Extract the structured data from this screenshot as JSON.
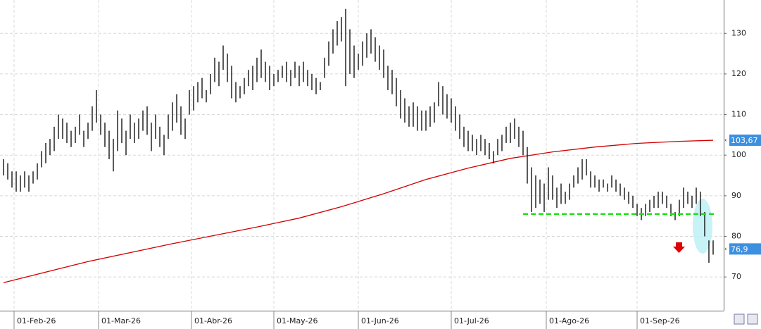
{
  "chart_data": {
    "type": "ohlc",
    "x": [
      0,
      1,
      2,
      3,
      4,
      5,
      6,
      7,
      8,
      9,
      10,
      11,
      12,
      13,
      14,
      15,
      16,
      17,
      18,
      19,
      20,
      21,
      22,
      23,
      24,
      25,
      26,
      27,
      28,
      29,
      30,
      31,
      32,
      33,
      34,
      35,
      36,
      37,
      38,
      39,
      40,
      41,
      42,
      43,
      44,
      45,
      46,
      47,
      48,
      49,
      50,
      51,
      52,
      53,
      54,
      55,
      56,
      57,
      58,
      59,
      60,
      61,
      62,
      63,
      64,
      65,
      66,
      67,
      68,
      69,
      70,
      71,
      72,
      73,
      74,
      75,
      76,
      77,
      78,
      79,
      80,
      81,
      82,
      83,
      84,
      85,
      86,
      87,
      88,
      89,
      90,
      91,
      92,
      93,
      94,
      95,
      96,
      97,
      98,
      99,
      100,
      101,
      102,
      103,
      104,
      105,
      106,
      107,
      108,
      109,
      110,
      111,
      112,
      113,
      114,
      115,
      116,
      117,
      118,
      119,
      120,
      121,
      122,
      123,
      124,
      125,
      126,
      127,
      128,
      129,
      130,
      131,
      132,
      133,
      134,
      135,
      136,
      137,
      138,
      139,
      140,
      141,
      142,
      143,
      144,
      145,
      146,
      147,
      148,
      149,
      150,
      151,
      152,
      153,
      154,
      155,
      156,
      157,
      158,
      159,
      160,
      161,
      162,
      163,
      164,
      165,
      166,
      167,
      168
    ],
    "high": [
      99,
      98,
      96,
      96,
      95,
      96,
      95,
      96,
      98,
      101,
      103,
      104,
      107,
      110,
      109,
      108,
      106,
      107,
      110,
      106,
      108,
      112,
      116,
      110,
      108,
      106,
      104,
      111,
      109,
      106,
      110,
      108,
      109,
      111,
      112,
      108,
      110,
      107,
      105,
      110,
      113,
      115,
      112,
      109,
      116,
      117,
      118,
      119,
      116,
      120,
      124,
      123,
      127,
      125,
      122,
      118,
      117,
      119,
      121,
      122,
      124,
      126,
      123,
      122,
      120,
      121,
      122,
      123,
      121,
      123,
      122,
      123,
      121,
      120,
      119,
      118,
      124,
      128,
      131,
      133,
      134,
      136,
      131,
      127,
      125,
      128,
      130,
      131,
      129,
      127,
      126,
      122,
      121,
      119,
      116,
      114,
      112,
      113,
      112,
      111,
      111,
      112,
      113,
      118,
      117,
      115,
      114,
      112,
      110,
      107,
      106,
      105,
      104,
      105,
      104,
      103,
      101,
      104,
      105,
      107,
      108,
      109,
      107,
      106,
      102,
      97,
      95,
      94,
      93,
      97,
      95,
      92,
      93,
      91,
      93,
      95,
      97,
      99,
      99,
      96,
      95,
      94,
      94,
      93,
      95,
      94,
      93,
      92,
      91,
      90,
      88,
      87,
      88,
      89,
      90,
      91,
      91,
      90,
      88,
      86,
      89,
      92,
      91,
      90,
      92,
      91,
      86,
      79,
      79
    ],
    "low": [
      95,
      94,
      92,
      91,
      91,
      92,
      91,
      93,
      94,
      97,
      98,
      100,
      101,
      104,
      104,
      103,
      102,
      103,
      105,
      102,
      104,
      106,
      108,
      105,
      102,
      99,
      96,
      101,
      103,
      100,
      104,
      103,
      104,
      106,
      105,
      101,
      104,
      102,
      100,
      104,
      106,
      108,
      105,
      104,
      110,
      111,
      113,
      114,
      113,
      115,
      118,
      117,
      121,
      118,
      114,
      113,
      114,
      115,
      117,
      116,
      118,
      119,
      118,
      116,
      117,
      118,
      119,
      118,
      117,
      119,
      117,
      118,
      117,
      116,
      115,
      116,
      119,
      122,
      125,
      127,
      128,
      117,
      120,
      119,
      121,
      122,
      124,
      125,
      123,
      121,
      119,
      116,
      115,
      112,
      109,
      108,
      107,
      107,
      106,
      106,
      106,
      107,
      108,
      112,
      110,
      109,
      108,
      106,
      104,
      102,
      101,
      101,
      100,
      101,
      100,
      99,
      98,
      100,
      101,
      103,
      103,
      104,
      102,
      100,
      93,
      86,
      87,
      88,
      86,
      89,
      89,
      87,
      88,
      88,
      89,
      92,
      93,
      94,
      95,
      92,
      92,
      91,
      92,
      91,
      92,
      91,
      90,
      89,
      88,
      87,
      85,
      84,
      85,
      86,
      87,
      87,
      88,
      87,
      85,
      84,
      85,
      87,
      88,
      87,
      88,
      85,
      80,
      73.5,
      75.5
    ],
    "color": "#000000",
    "moving_average": {
      "color": "#d00000",
      "x": [
        0,
        20,
        40,
        60,
        70,
        80,
        90,
        100,
        110,
        120,
        130,
        140,
        150,
        160,
        168
      ],
      "values": [
        68.6,
        73.8,
        78.2,
        82.3,
        84.5,
        87.3,
        90.5,
        94,
        96.8,
        99.2,
        100.8,
        102,
        102.9,
        103.4,
        103.67
      ]
    },
    "support": {
      "value": 85.5,
      "x": [
        123,
        168
      ],
      "color": "#22e01a"
    },
    "price_tags": [
      {
        "value": 103.67,
        "label": "103,67"
      },
      {
        "value": 76.9,
        "label": "76,9"
      }
    ],
    "xlim": [
      -0.8333,
      170.5
    ],
    "ylim": [
      61.7,
      138.2
    ],
    "yticks": [
      70,
      80,
      90,
      100,
      110,
      120,
      130
    ],
    "xticks": [
      {
        "value": 2.5,
        "label": "01-Feb-26"
      },
      {
        "value": 22.5,
        "label": "01-Mar-26"
      },
      {
        "value": 44.5,
        "label": "01-Abr-26"
      },
      {
        "value": 64,
        "label": "01-May-26"
      },
      {
        "value": 84,
        "label": "01-Jun-26"
      },
      {
        "value": 106,
        "label": "01-Jul-26"
      },
      {
        "value": 128.5,
        "label": "01-Ago-26"
      },
      {
        "value": 150,
        "label": "01-Sep-26"
      }
    ],
    "grid": true
  }
}
